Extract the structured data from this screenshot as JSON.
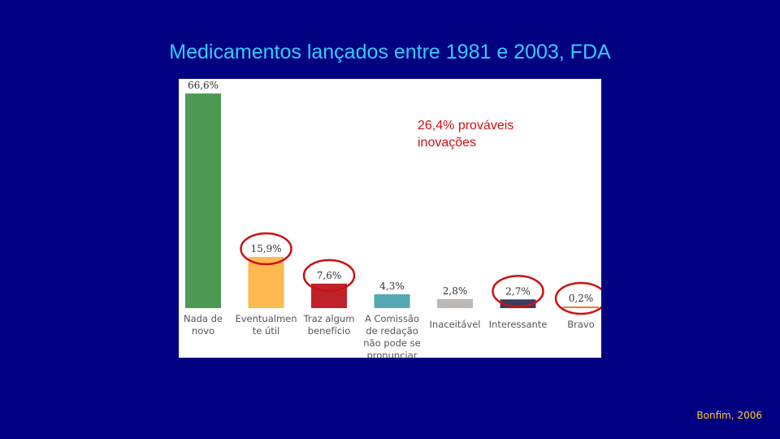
{
  "slide": {
    "title": "Medicamentos lançados entre 1981 e 2003, FDA",
    "annotation_line1": "26,4% prováveis",
    "annotation_line2": "inovações",
    "source": "Bonfim, 2006"
  },
  "colors": {
    "background": "#000080",
    "title": "#33ccff",
    "annotation": "#cc1111",
    "source": "#ffcc33",
    "highlight_circle": "#cc1111"
  },
  "chart_data": {
    "type": "bar",
    "categories": [
      [
        "Nada de",
        "novo"
      ],
      [
        "Eventualmen",
        "te útil"
      ],
      [
        "Traz algum",
        "benefício"
      ],
      [
        "A Comissão",
        "de redação",
        "não pode se",
        "pronunciar"
      ],
      [
        "Inaceitável"
      ],
      [
        "Interessante"
      ],
      [
        "Bravo"
      ]
    ],
    "values": [
      66.6,
      15.9,
      7.6,
      4.3,
      2.8,
      2.7,
      0.2
    ],
    "value_labels": [
      "66,6%",
      "15,9%",
      "7,6%",
      "4,3%",
      "2,8%",
      "2,7%",
      "0,2%"
    ],
    "colors": [
      "#4e9a55",
      "#fdb94e",
      "#c0222b",
      "#55a8b1",
      "#bdb8b3",
      "#3b3d5e",
      "#f07d28"
    ],
    "highlighted": [
      1,
      2,
      5,
      6
    ],
    "ylim": [
      0,
      66.6
    ],
    "grid": false,
    "legend": "none"
  }
}
